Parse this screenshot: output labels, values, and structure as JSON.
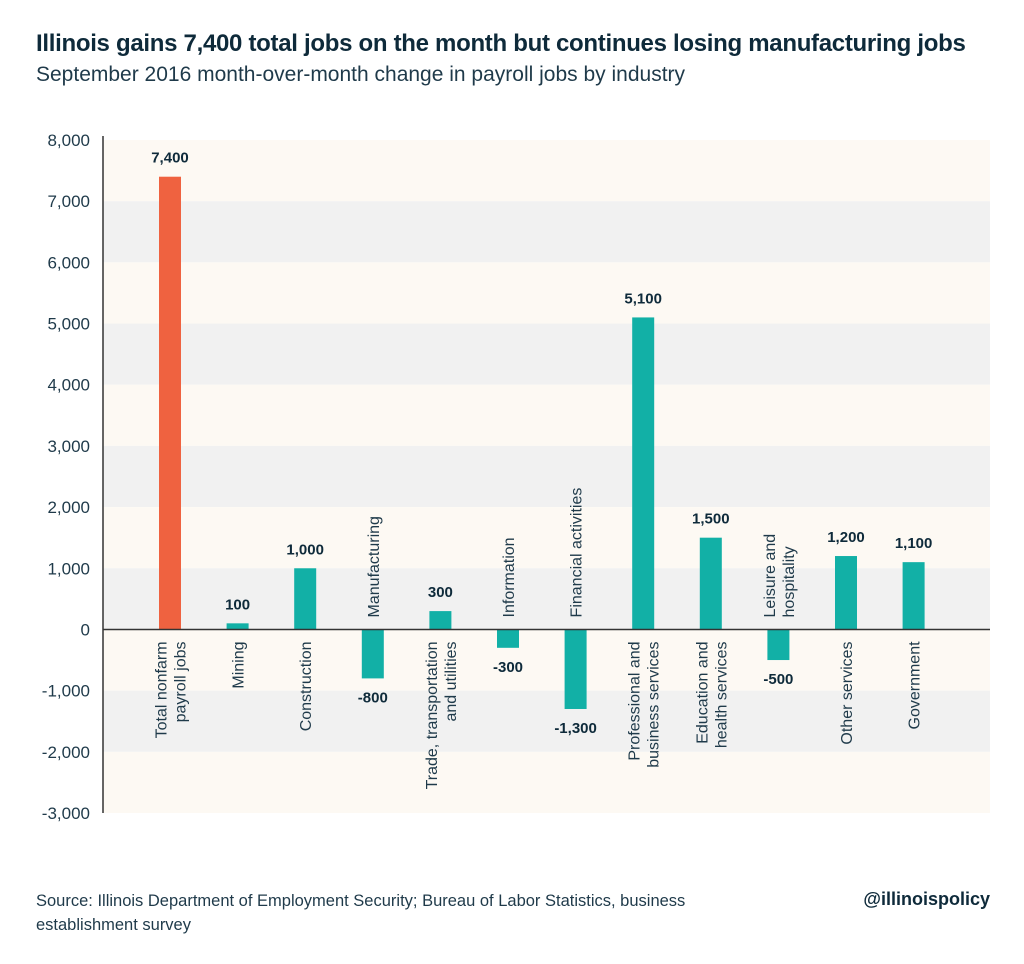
{
  "header": {
    "title": "Illinois gains 7,400 total jobs on the month but continues losing manufacturing jobs",
    "subtitle": "September 2016 month-over-month change in payroll jobs by industry"
  },
  "footer": {
    "source": "Source: Illinois Department of Employment Security; Bureau of Labor Statistics, business establishment survey",
    "handle": "@illinoispolicy"
  },
  "colors": {
    "highlight": "#ef6240",
    "bar": "#12b0a6",
    "band_light": "#fdf9f3",
    "band_dark": "#f1f1f1",
    "axis": "#333333"
  },
  "chart_data": {
    "type": "bar",
    "ylim": [
      -3000,
      8000
    ],
    "yticks": [
      "8,000",
      "7,000",
      "6,000",
      "5,000",
      "4,000",
      "3,000",
      "2,000",
      "1,000",
      "0",
      "-1,000",
      "-2,000",
      "-3,000"
    ],
    "ytick_values": [
      8000,
      7000,
      6000,
      5000,
      4000,
      3000,
      2000,
      1000,
      0,
      -1000,
      -2000,
      -3000
    ],
    "grid": "alternating horizontal bands",
    "bars": [
      {
        "category": [
          "Total nonfarm",
          "payroll jobs"
        ],
        "value": 7400,
        "label": "7,400",
        "highlight": true
      },
      {
        "category": [
          "Mining"
        ],
        "value": 100,
        "label": "100"
      },
      {
        "category": [
          "Construction"
        ],
        "value": 1000,
        "label": "1,000"
      },
      {
        "category": [
          "Manufacturing"
        ],
        "value": -800,
        "label": "-800"
      },
      {
        "category": [
          "Trade, transportation",
          "and utilities"
        ],
        "value": 300,
        "label": "300"
      },
      {
        "category": [
          "Information"
        ],
        "value": -300,
        "label": "-300"
      },
      {
        "category": [
          "Financial activities"
        ],
        "value": -1300,
        "label": "-1,300"
      },
      {
        "category": [
          "Professional and",
          "business services"
        ],
        "value": 5100,
        "label": "5,100"
      },
      {
        "category": [
          "Education and",
          "health services"
        ],
        "value": 1500,
        "label": "1,500"
      },
      {
        "category": [
          "Leisure and",
          "hospitality"
        ],
        "value": -500,
        "label": "-500"
      },
      {
        "category": [
          "Other services"
        ],
        "value": 1200,
        "label": "1,200"
      },
      {
        "category": [
          "Government"
        ],
        "value": 1100,
        "label": "1,100"
      }
    ]
  }
}
